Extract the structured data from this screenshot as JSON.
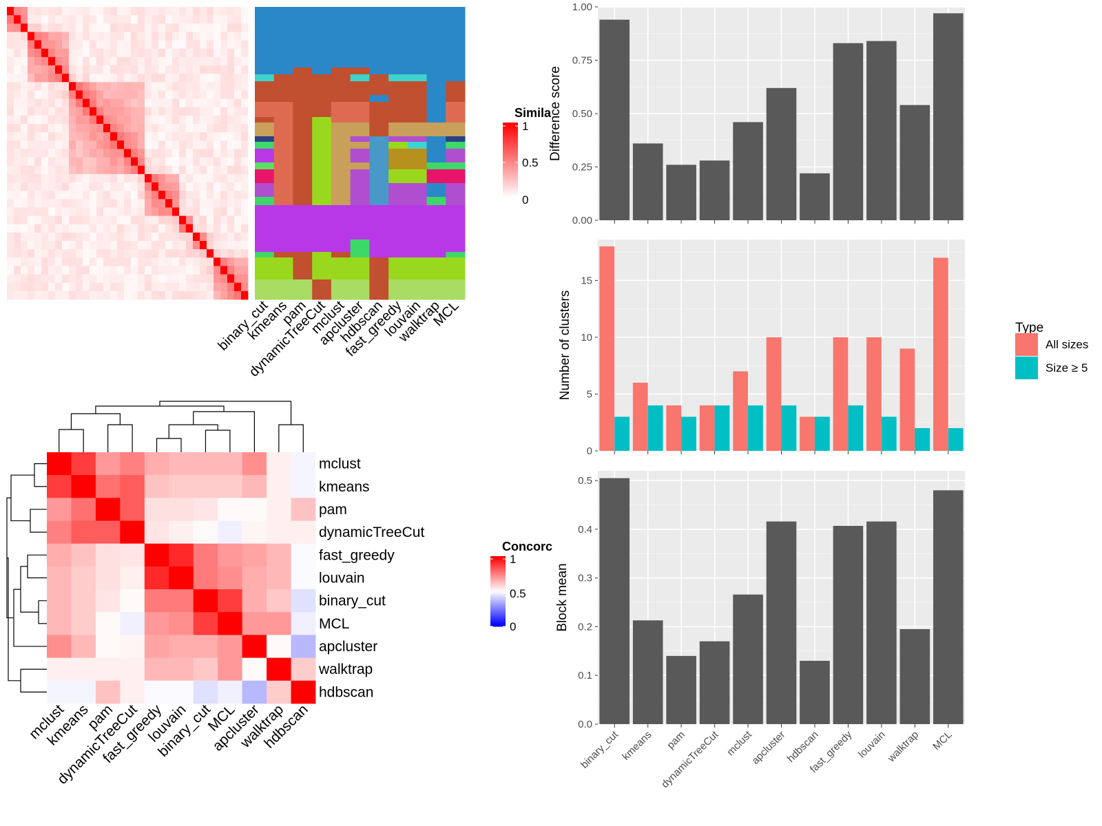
{
  "methods_order_bar": [
    "binary_cut",
    "kmeans",
    "pam",
    "dynamicTreeCut",
    "mclust",
    "apcluster",
    "hdbscan",
    "fast_greedy",
    "louvain",
    "walktrap",
    "MCL"
  ],
  "heatmap1_legend": {
    "title": "Simila",
    "ticks": [
      "1",
      "0.5",
      "0"
    ]
  },
  "heatmap2_legend": {
    "title": "Concorc",
    "ticks": [
      "1",
      "0.5",
      "0"
    ]
  },
  "heatmap2_labels": [
    "mclust",
    "kmeans",
    "pam",
    "dynamicTreeCut",
    "fast_greedy",
    "louvain",
    "binary_cut",
    "MCL",
    "apcluster",
    "walktrap",
    "hdbscan"
  ],
  "cluster_legend": {
    "title": "Type",
    "items": [
      {
        "label": "All sizes",
        "color": "#F8766D"
      },
      {
        "label": "Size ≥ 5",
        "color": "#00BFC4"
      }
    ]
  },
  "chart_data": [
    {
      "type": "bar",
      "ylabel": "Difference score",
      "categories": [
        "binary_cut",
        "kmeans",
        "pam",
        "dynamicTreeCut",
        "mclust",
        "apcluster",
        "hdbscan",
        "fast_greedy",
        "louvain",
        "walktrap",
        "MCL"
      ],
      "values": [
        0.94,
        0.36,
        0.26,
        0.28,
        0.46,
        0.62,
        0.22,
        0.83,
        0.84,
        0.54,
        0.97
      ],
      "ylim": [
        0,
        1
      ],
      "yticks": [
        "0.00",
        "0.25",
        "0.50",
        "0.75",
        "1.00"
      ],
      "grid": true
    },
    {
      "type": "bar",
      "ylabel": "Number of clusters",
      "categories": [
        "binary_cut",
        "kmeans",
        "pam",
        "dynamicTreeCut",
        "mclust",
        "apcluster",
        "hdbscan",
        "fast_greedy",
        "louvain",
        "walktrap",
        "MCL"
      ],
      "series": [
        {
          "name": "All sizes",
          "values": [
            18,
            6,
            4,
            4,
            7,
            10,
            3,
            10,
            10,
            9,
            17
          ]
        },
        {
          "name": "Size ≥ 5",
          "values": [
            3,
            4,
            3,
            4,
            4,
            4,
            3,
            4,
            3,
            2,
            2
          ]
        }
      ],
      "ylim": [
        0,
        18.6
      ],
      "yticks": [
        "0",
        "5",
        "10",
        "15"
      ],
      "legend": "right",
      "grid": true
    },
    {
      "type": "bar",
      "ylabel": "Block mean",
      "categories": [
        "binary_cut",
        "kmeans",
        "pam",
        "dynamicTreeCut",
        "mclust",
        "apcluster",
        "hdbscan",
        "fast_greedy",
        "louvain",
        "walktrap",
        "MCL"
      ],
      "values": [
        0.505,
        0.213,
        0.14,
        0.17,
        0.266,
        0.416,
        0.13,
        0.407,
        0.416,
        0.195,
        0.48
      ],
      "ylim": [
        0,
        0.52
      ],
      "yticks": [
        "0.0",
        "0.1",
        "0.2",
        "0.3",
        "0.4",
        "0.5"
      ],
      "grid": true
    },
    {
      "type": "heatmap",
      "rows": [
        "mclust",
        "kmeans",
        "pam",
        "dynamicTreeCut",
        "fast_greedy",
        "louvain",
        "binary_cut",
        "MCL",
        "apcluster",
        "walktrap",
        "hdbscan"
      ],
      "cols": [
        "mclust",
        "kmeans",
        "pam",
        "dynamicTreeCut",
        "fast_greedy",
        "louvain",
        "binary_cut",
        "MCL",
        "apcluster",
        "walktrap",
        "hdbscan"
      ],
      "values": [
        [
          1.0,
          0.88,
          0.7,
          0.75,
          0.66,
          0.64,
          0.64,
          0.64,
          0.72,
          0.53,
          0.48
        ],
        [
          0.88,
          1.0,
          0.78,
          0.82,
          0.62,
          0.6,
          0.6,
          0.6,
          0.64,
          0.53,
          0.48
        ],
        [
          0.7,
          0.78,
          1.0,
          0.82,
          0.56,
          0.56,
          0.55,
          0.51,
          0.51,
          0.53,
          0.62
        ],
        [
          0.75,
          0.82,
          0.82,
          1.0,
          0.55,
          0.53,
          0.51,
          0.47,
          0.52,
          0.53,
          0.53
        ],
        [
          0.66,
          0.62,
          0.56,
          0.55,
          1.0,
          0.92,
          0.76,
          0.7,
          0.68,
          0.64,
          0.49
        ],
        [
          0.64,
          0.6,
          0.56,
          0.53,
          0.92,
          1.0,
          0.76,
          0.72,
          0.66,
          0.64,
          0.49
        ],
        [
          0.64,
          0.6,
          0.55,
          0.51,
          0.76,
          0.76,
          1.0,
          0.88,
          0.66,
          0.61,
          0.44
        ],
        [
          0.64,
          0.6,
          0.51,
          0.47,
          0.7,
          0.72,
          0.88,
          1.0,
          0.7,
          0.7,
          0.47
        ],
        [
          0.72,
          0.64,
          0.51,
          0.52,
          0.68,
          0.66,
          0.66,
          0.7,
          1.0,
          0.51,
          0.36
        ],
        [
          0.53,
          0.53,
          0.53,
          0.53,
          0.64,
          0.64,
          0.61,
          0.7,
          0.51,
          1.0,
          0.6
        ],
        [
          0.48,
          0.48,
          0.62,
          0.53,
          0.49,
          0.49,
          0.44,
          0.47,
          0.36,
          0.6,
          1.0
        ]
      ]
    }
  ]
}
